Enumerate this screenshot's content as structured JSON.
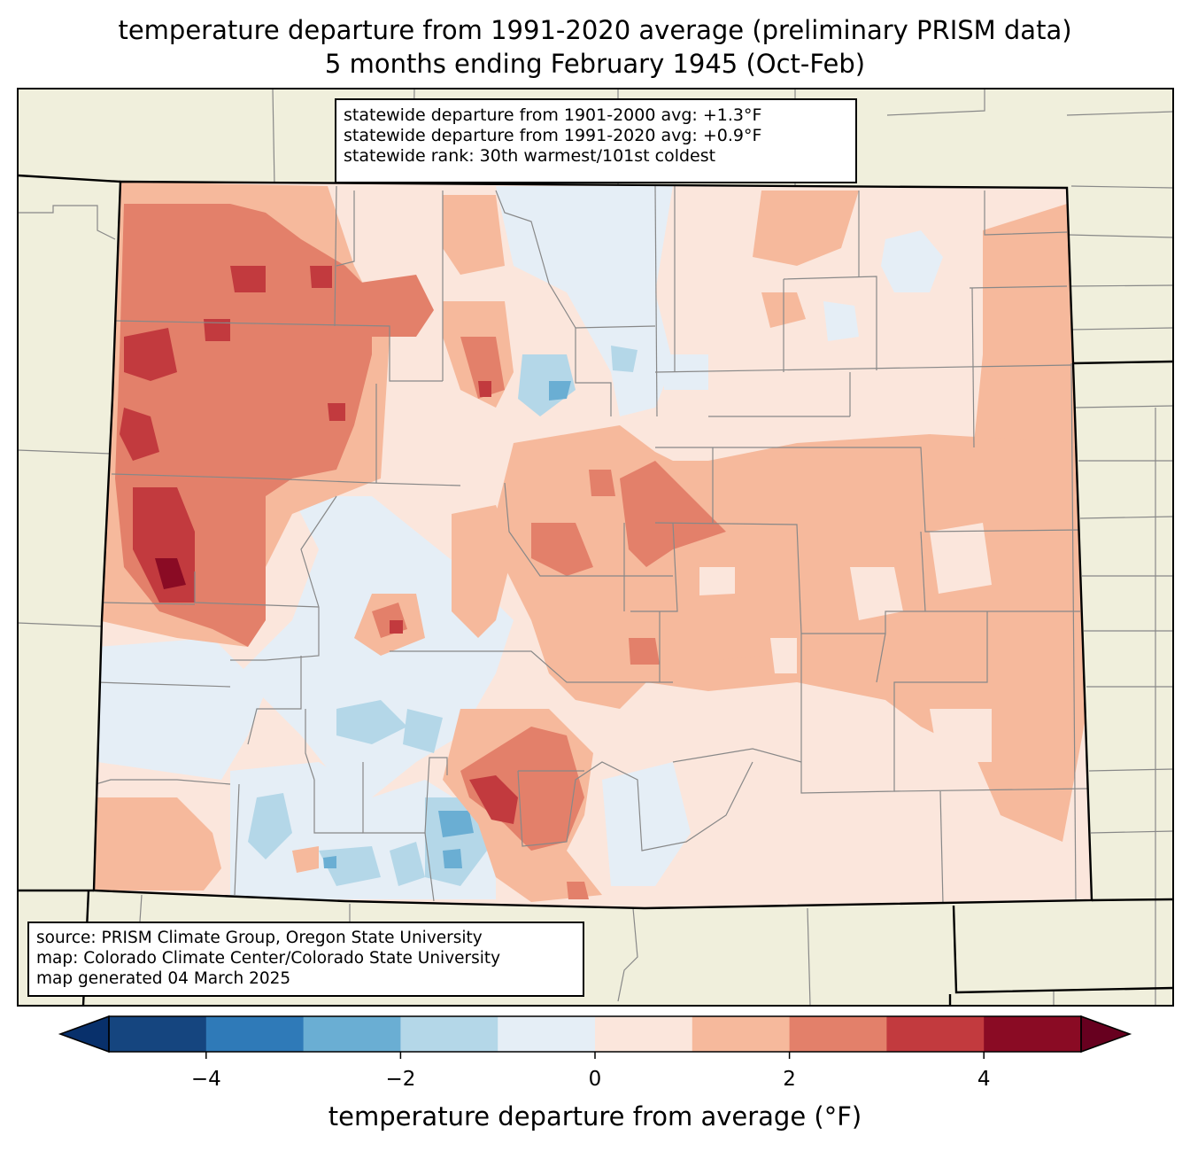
{
  "title": {
    "line1": "temperature departure from 1991-2020 average (preliminary PRISM data)",
    "line2": "5 months ending February 1945 (Oct-Feb)"
  },
  "stats": {
    "line1": "statewide departure from 1901-2000 avg: +1.3°F",
    "line2": "statewide departure from 1991-2020 avg: +0.9°F",
    "line3": "statewide rank: 30th warmest/101st coldest"
  },
  "credits": {
    "line1": "source: PRISM Climate Group, Oregon State University",
    "line2": "map: Colorado Climate Center/Colorado State University",
    "line3": "map generated 04 March 2025"
  },
  "colorbar": {
    "label": "temperature departure from average (°F)",
    "ticks": [
      "−4",
      "−2",
      "0",
      "2",
      "4"
    ],
    "tick_values": [
      -4,
      -2,
      0,
      2,
      4
    ],
    "range": [
      -5,
      5
    ],
    "bins": [
      {
        "from": -5,
        "to": -4,
        "color": "#15457f"
      },
      {
        "from": -4,
        "to": -3,
        "color": "#2f7ab8"
      },
      {
        "from": -3,
        "to": -2,
        "color": "#6aaed3"
      },
      {
        "from": -2,
        "to": -1,
        "color": "#b4d7e8"
      },
      {
        "from": -1,
        "to": 0,
        "color": "#e5eef6"
      },
      {
        "from": 0,
        "to": 1,
        "color": "#fbe6dc"
      },
      {
        "from": 1,
        "to": 2,
        "color": "#f6b99c"
      },
      {
        "from": 2,
        "to": 3,
        "color": "#e3806a"
      },
      {
        "from": 3,
        "to": 4,
        "color": "#c23a3e"
      },
      {
        "from": 4,
        "to": 5,
        "color": "#8a0b24"
      }
    ],
    "under_color": "#08306b",
    "over_color": "#67001f"
  },
  "map_colors": {
    "land_background": "#f0efdc",
    "state_border": "#000000",
    "county_border": "#888888"
  }
}
